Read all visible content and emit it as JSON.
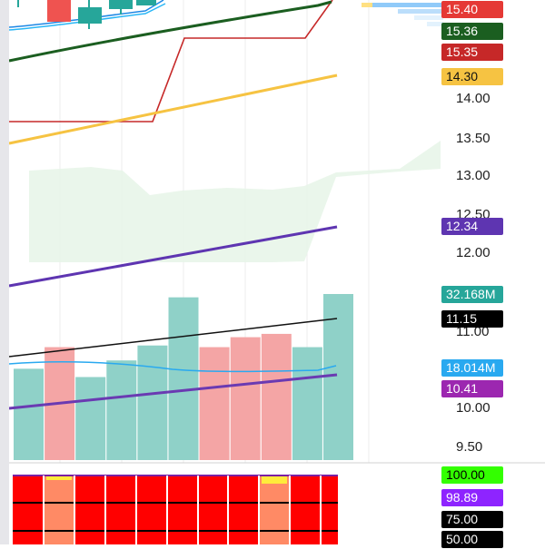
{
  "price_axis": {
    "tick_labels": [
      "14.00",
      "13.50",
      "13.00",
      "12.50",
      "12.00",
      "11.00",
      "10.00",
      "9.50"
    ]
  },
  "badges": [
    {
      "id": "last-price",
      "text": "15.40",
      "bg": "#e53935",
      "fg": "#ffffff"
    },
    {
      "id": "ma-green",
      "text": "15.36",
      "bg": "#1b5e20",
      "fg": "#ffffff"
    },
    {
      "id": "step-red",
      "text": "15.35",
      "bg": "#c62828",
      "fg": "#ffffff"
    },
    {
      "id": "ma-yellow",
      "text": "14.30",
      "bg": "#f6c342",
      "fg": "#111111"
    },
    {
      "id": "ma-purple",
      "text": "12.34",
      "bg": "#5e35b1",
      "fg": "#ffffff"
    },
    {
      "id": "volume",
      "text": "32.168M",
      "bg": "#26a69a",
      "fg": "#ffffff"
    },
    {
      "id": "vol-black",
      "text": "11.15",
      "bg": "#000000",
      "fg": "#ffffff"
    },
    {
      "id": "vol-blue",
      "text": "18.014M",
      "bg": "#29a9f0",
      "fg": "#ffffff"
    },
    {
      "id": "vol-purple",
      "text": "10.41",
      "bg": "#9c27b0",
      "fg": "#ffffff"
    },
    {
      "id": "osc-max",
      "text": "100.00",
      "bg": "#33ff00",
      "fg": "#000000"
    },
    {
      "id": "osc-value",
      "text": "98.89",
      "bg": "#8e24ff",
      "fg": "#ffffff"
    },
    {
      "id": "osc-75",
      "text": "75.00",
      "bg": "#000000",
      "fg": "#ffffff"
    },
    {
      "id": "osc-50",
      "text": "50.00",
      "bg": "#000000",
      "fg": "#ffffff"
    }
  ],
  "chart_data": {
    "type": "bar",
    "series": [
      {
        "name": "",
        "values": [
          0.55,
          0.68,
          0.5,
          0.6,
          0.69,
          0.98,
          0.68,
          0.74,
          0.76,
          0.68,
          1.0
        ]
      }
    ],
    "bar_colors": [
      "green",
      "red",
      "green",
      "green",
      "green",
      "green",
      "red",
      "red",
      "red",
      "green",
      "green"
    ]
  },
  "colors": {
    "up": "#26a69a",
    "down": "#ef5350",
    "ma_green": "#1b5e20",
    "ma_yellow": "#f6c342",
    "ma_purple": "#5e35b1",
    "step_red": "#c62828",
    "cloud": "#e8f5e9",
    "oscillator_bg": "#ff0000",
    "oscillator_highlight": "#ff8a65"
  }
}
